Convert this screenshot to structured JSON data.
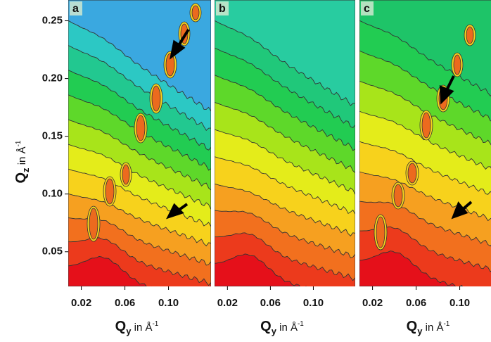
{
  "chart_data": [
    {
      "type": "contour",
      "panel_label": "a",
      "x_label": {
        "main": "Q",
        "sub": "y",
        "unit": " in Å",
        "exp": "-1"
      },
      "y_label": {
        "main": "Q",
        "sub": "z",
        "unit": " in Å",
        "exp": "-1"
      },
      "xlim": [
        0.008,
        0.139
      ],
      "ylim": [
        0.02,
        0.268
      ],
      "xticks": [
        0.02,
        0.06,
        {
          "value": 0.1,
          "label": "0.10"
        }
      ],
      "yticks": [
        {
          "value": 0.05,
          "label": "0.05"
        },
        {
          "value": 0.1,
          "label": "0.10"
        },
        0.15,
        {
          "value": 0.2,
          "label": "0.20"
        },
        0.25
      ],
      "colors": [
        "#e5101a",
        "#ec3a1c",
        "#f2701e",
        "#f6a020",
        "#f7d21c",
        "#e4ec1a",
        "#a8e41a",
        "#5ed82a",
        "#22cc52",
        "#22c890",
        "#2cc8c4",
        "#3aa8e0"
      ]
    },
    {
      "type": "contour",
      "panel_label": "b",
      "x_label": {
        "main": "Q",
        "sub": "y",
        "unit": " in Å",
        "exp": "-1"
      },
      "xlim": [
        0.008,
        0.139
      ],
      "ylim": [
        0.02,
        0.268
      ],
      "xticks": [
        0.02,
        0.06,
        {
          "value": 0.1,
          "label": "0.10"
        }
      ],
      "colors": [
        "#e5101a",
        "#ec3a1c",
        "#f2701e",
        "#f6a020",
        "#f7d21c",
        "#e4ec1a",
        "#a8e41a",
        "#5ed82a",
        "#22cc52",
        "#20c87a",
        "#28cca0"
      ]
    },
    {
      "type": "contour",
      "panel_label": "c",
      "x_label": {
        "main": "Q",
        "sub": "y",
        "unit": " in Å",
        "exp": "-1"
      },
      "xlim": [
        0.008,
        0.139
      ],
      "ylim": [
        0.02,
        0.268
      ],
      "xticks": [
        0.02,
        0.06,
        {
          "value": 0.1,
          "label": "0.10"
        }
      ],
      "colors": [
        "#e5101a",
        "#ec3a1c",
        "#f2701e",
        "#f6a020",
        "#f7d21c",
        "#e4ec1a",
        "#a8e41a",
        "#5ed82a",
        "#22cc52",
        "#1ec468"
      ]
    }
  ]
}
